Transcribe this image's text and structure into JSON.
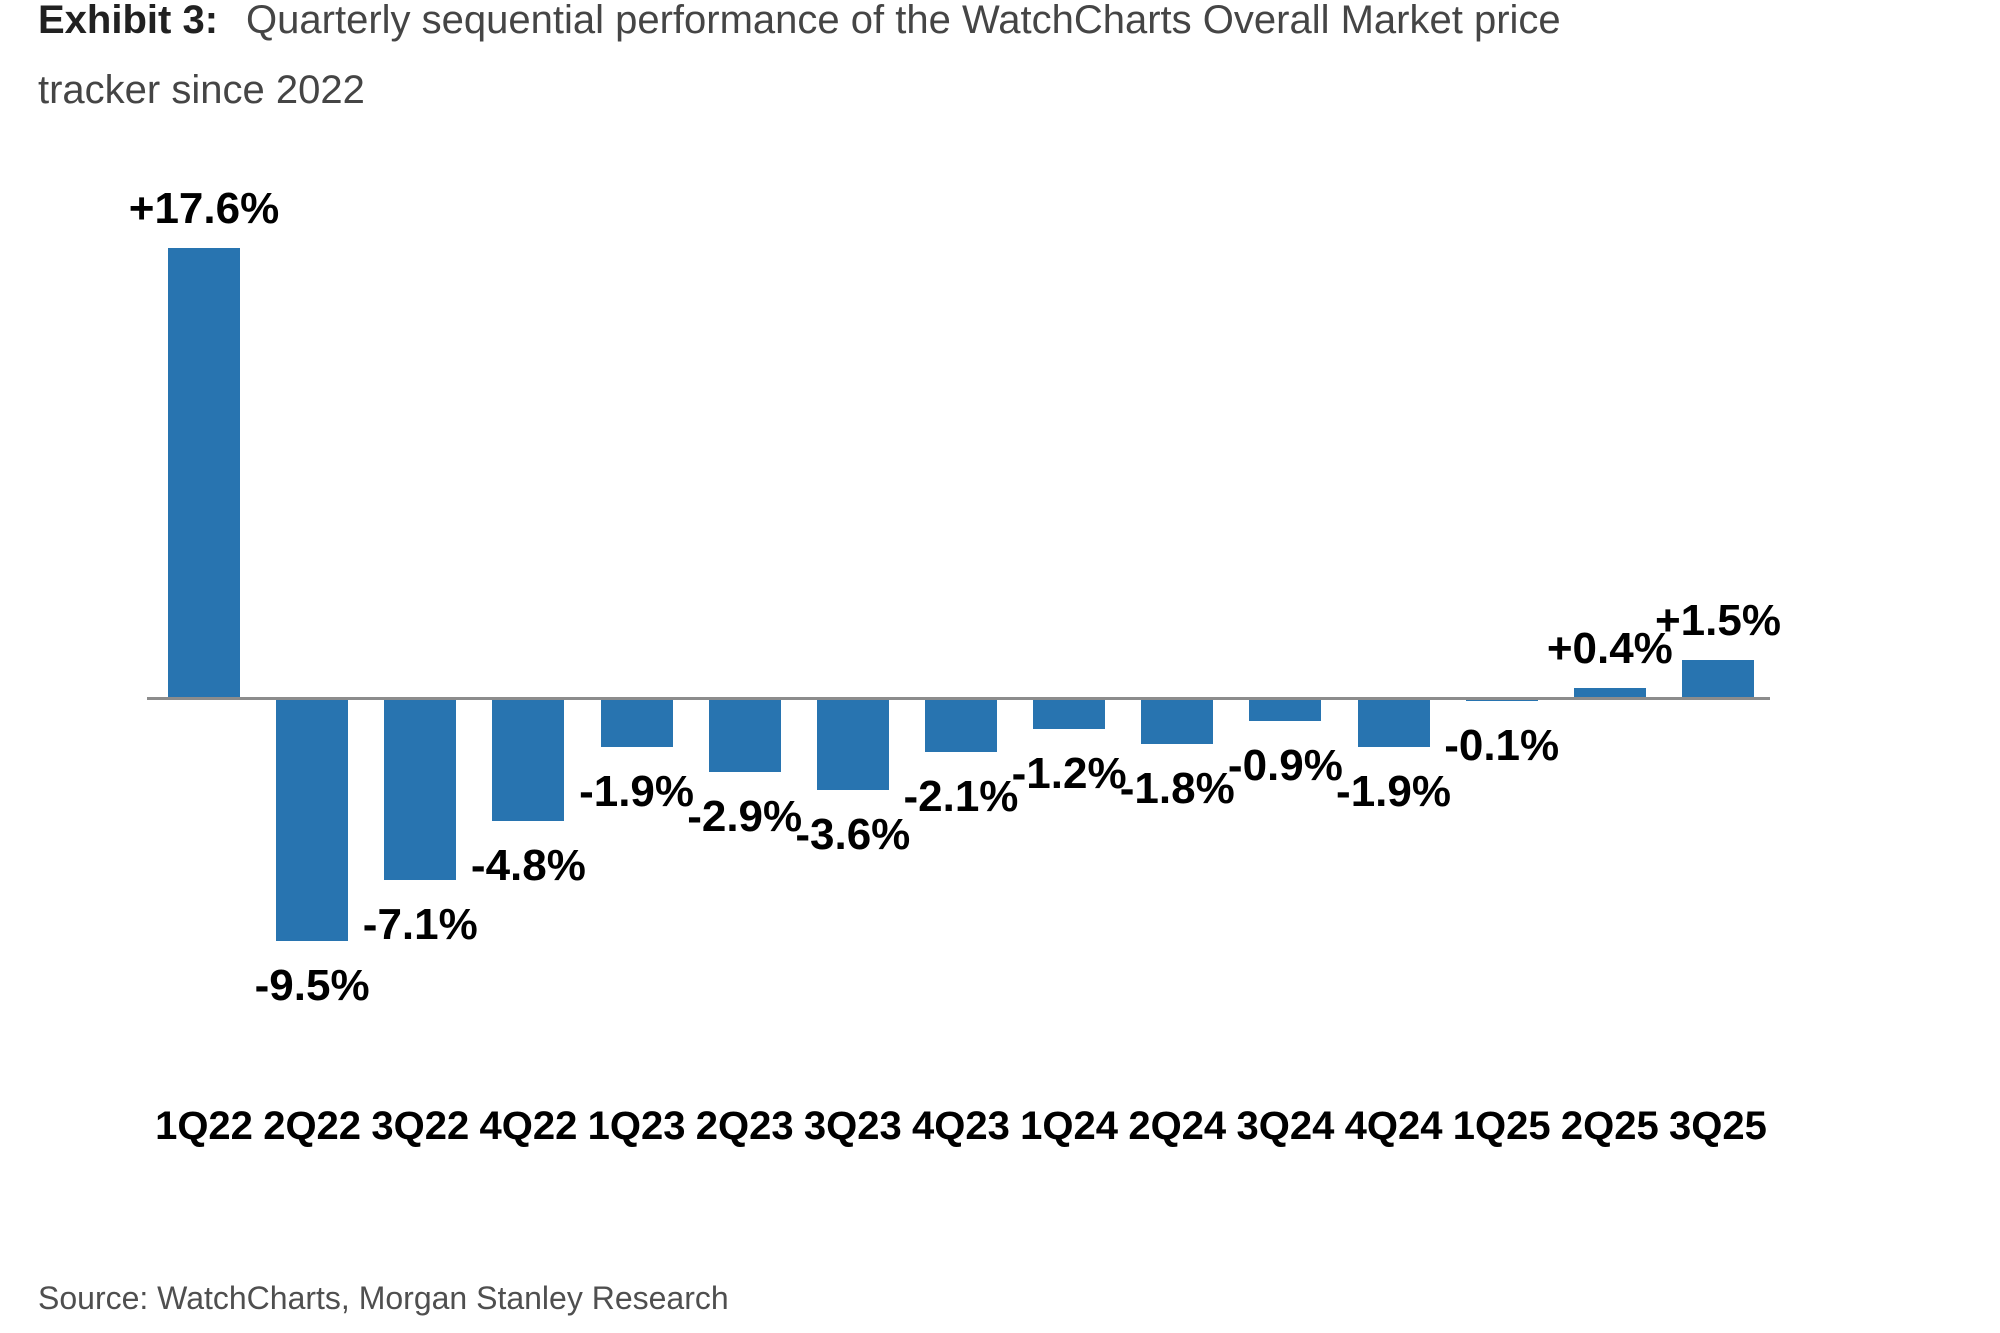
{
  "exhibit": {
    "label": "Exhibit 3:",
    "title_line1": "Quarterly sequential performance of the WatchCharts Overall Market price",
    "title_line2": "tracker since 2022"
  },
  "source": "Source: WatchCharts, Morgan Stanley Research",
  "colors": {
    "bar": "#2874B0",
    "axis_line": "#8C8C8C",
    "label": "#000000",
    "title_label": "#212121",
    "title_text": "#454545",
    "source_text": "#4F4F4F"
  },
  "chart_data": {
    "type": "bar",
    "title": "Exhibit 3: Quarterly sequential performance of the WatchCharts Overall Market price tracker since 2022",
    "categories": [
      "1Q22",
      "2Q22",
      "3Q22",
      "4Q22",
      "1Q23",
      "2Q23",
      "3Q23",
      "4Q23",
      "1Q24",
      "2Q24",
      "3Q24",
      "4Q24",
      "1Q25",
      "2Q25",
      "3Q25"
    ],
    "values": [
      17.6,
      -9.5,
      -7.1,
      -4.8,
      -1.9,
      -2.9,
      -3.6,
      -2.1,
      -1.2,
      -1.8,
      -0.9,
      -1.9,
      -0.1,
      0.4,
      1.5
    ],
    "point_labels": [
      "+17.6%",
      "-9.5%",
      "-7.1%",
      "-4.8%",
      "-1.9%",
      "-2.9%",
      "-3.6%",
      "-2.1%",
      "-1.2%",
      "-1.8%",
      "-0.9%",
      "-1.9%",
      "-0.1%",
      "+0.4%",
      "+1.5%"
    ],
    "xlabel": "",
    "ylabel": "",
    "ylim": [
      -12,
      20
    ],
    "grid": false,
    "legend": false,
    "baseline": 0,
    "data_labels": "outside-end",
    "source": "Source: WatchCharts, Morgan Stanley Research"
  }
}
